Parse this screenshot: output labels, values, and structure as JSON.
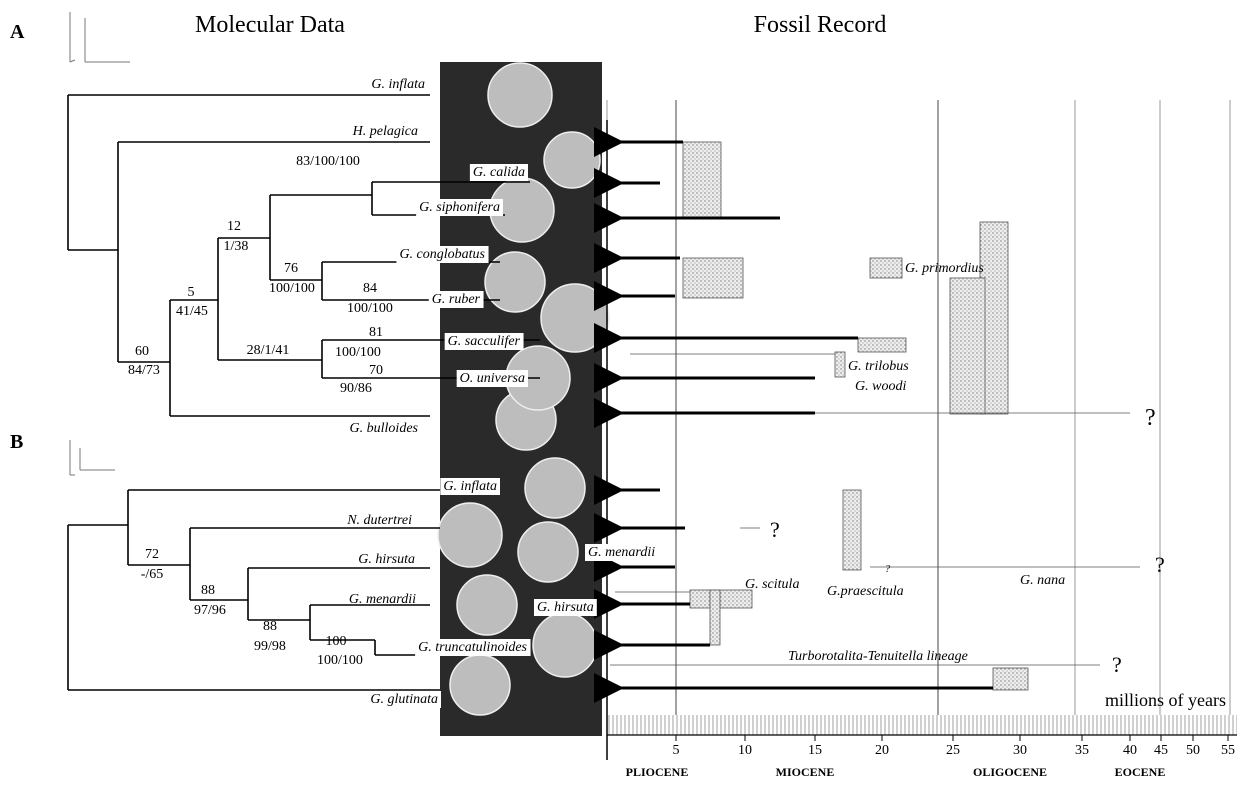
{
  "headers": {
    "molecular": "Molecular Data",
    "fossil": "Fossil Record"
  },
  "panels": [
    {
      "letter": "A",
      "taxa": [
        "G. inflata",
        "H. pelagica",
        "G. calida",
        "G. siphonifera",
        "G. conglobatus",
        "G. ruber",
        "G. sacculifer",
        "O. universa",
        "G. bulloides"
      ],
      "node_labels": [
        "83/100/100",
        "12",
        "1/38",
        "76",
        "100/100",
        "84",
        "100/100",
        "5",
        "41/45",
        "28/1/41",
        "81",
        "100/100",
        "70",
        "90/86",
        "60",
        "84/73"
      ],
      "fossil_labels": [
        "G. primordius",
        "G. trilobus",
        "G. woodi",
        "?"
      ]
    },
    {
      "letter": "B",
      "taxa": [
        "G. inflata",
        "N. dutertrei",
        "G. hirsuta",
        "G. menardii",
        "G. truncatulinoides",
        "G. glutinata"
      ],
      "node_labels": [
        "72",
        "-/65",
        "88",
        "97/96",
        "88",
        "99/98",
        "100",
        "100/100"
      ],
      "fossil_labels": [
        "?",
        "G. menardii",
        "G. hirsuta",
        "G. nana",
        "?",
        "G. scitula",
        "G.praescitula",
        "?",
        "Turborotalita-Tenuitella lineage",
        "?"
      ]
    }
  ],
  "time_axis": {
    "label": "millions of years",
    "ticks": [
      5,
      10,
      15,
      20,
      25,
      30,
      35,
      40,
      45,
      50,
      55
    ],
    "epochs": [
      "PLIOCENE",
      "MIOCENE",
      "OLIGOCENE",
      "EOCENE"
    ]
  }
}
